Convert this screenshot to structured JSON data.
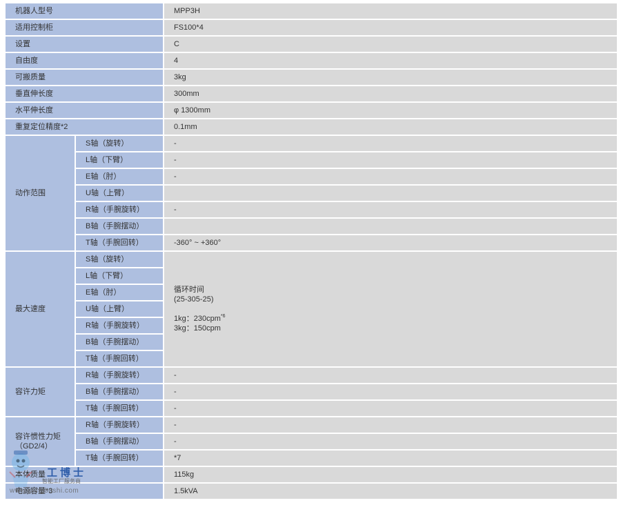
{
  "rows_top": [
    {
      "label": "机器人型号",
      "value": "MPP3H"
    },
    {
      "label": "适用控制柜",
      "value": "FS100*4"
    },
    {
      "label": "设置",
      "value": "C"
    },
    {
      "label": "自由度",
      "value": "4"
    },
    {
      "label": "可搬质量",
      "value": "3kg"
    },
    {
      "label": "垂直伸长度",
      "value": "300mm"
    },
    {
      "label": "水平伸长度",
      "value": "φ 1300mm"
    },
    {
      "label": "重复定位精度*2",
      "value": "0.1mm"
    }
  ],
  "motion_range": {
    "label": "动作范围",
    "axes": [
      "S轴（旋转）",
      "L轴（下臂）",
      "E轴（肘）",
      "U轴（上臂）",
      "R轴（手腕旋转）",
      "B轴（手腕摆动）",
      "T轴（手腕回转）"
    ],
    "values": [
      "-",
      "-",
      "-",
      "",
      "-",
      "",
      "-360° ~ +360°"
    ]
  },
  "max_speed": {
    "label": "最大速度",
    "axes": [
      "S轴（旋转）",
      "L轴（下臂）",
      "E轴（肘）",
      "U轴（上臂）",
      "R轴（手腕旋转）",
      "B轴（手腕摆动）",
      "T轴（手腕回转）"
    ],
    "cycle_title": "循环时间",
    "cycle_pattern": "(25-305-25)",
    "line1": "1kg：230cpm",
    "line1_note": "*6",
    "line2": "3kg：150cpm"
  },
  "allow_torque": {
    "label": "容许力矩",
    "axes": [
      "R轴（手腕旋转）",
      "B轴（手腕摆动）",
      "T轴（手腕回转）"
    ],
    "values": [
      "-",
      "-",
      "-"
    ]
  },
  "allow_inertia": {
    "label": "容许惯性力矩（GD2/4）",
    "axes": [
      "R轴（手腕旋转）",
      "B轴（手腕摆动）",
      "T轴（手腕回转）"
    ],
    "values": [
      "-",
      "-",
      "*7"
    ]
  },
  "rows_bottom": [
    {
      "label": "本体质量",
      "value": "115kg"
    },
    {
      "label": "电源容量*3",
      "value": "1.5kVA"
    }
  ],
  "watermark": {
    "title": "工博士",
    "subtitle": "智能工厂服务商",
    "url": "www.gongboshi.com"
  }
}
